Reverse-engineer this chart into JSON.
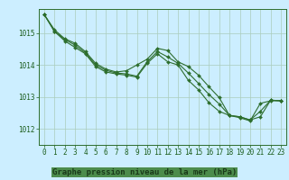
{
  "title": "Graphe pression niveau de la mer (hPa)",
  "background_color": "#cceeff",
  "grid_color": "#aaccbb",
  "line_color": "#2d6e2d",
  "marker": "D",
  "markersize": 2.0,
  "linewidth": 0.8,
  "xlim": [
    -0.5,
    23.5
  ],
  "ylim": [
    1011.5,
    1015.75
  ],
  "yticks": [
    1012,
    1013,
    1014,
    1015
  ],
  "xticks": [
    0,
    1,
    2,
    3,
    4,
    5,
    6,
    7,
    8,
    9,
    10,
    11,
    12,
    13,
    14,
    15,
    16,
    17,
    18,
    19,
    20,
    21,
    22,
    23
  ],
  "series": [
    [
      1015.58,
      1015.1,
      1014.82,
      1014.68,
      1014.42,
      1014.05,
      1013.87,
      1013.78,
      1013.82,
      1014.0,
      1014.18,
      1014.52,
      1014.45,
      1014.1,
      1013.95,
      1013.68,
      1013.32,
      1012.98,
      1012.42,
      1012.38,
      1012.28,
      1012.38,
      1012.9,
      1012.88
    ],
    [
      1015.58,
      1015.05,
      1014.75,
      1014.55,
      1014.35,
      1013.95,
      1013.78,
      1013.72,
      1013.68,
      1013.62,
      1014.05,
      1014.35,
      1014.1,
      1014.0,
      1013.52,
      1013.22,
      1012.82,
      1012.55,
      1012.42,
      1012.35,
      1012.25,
      1012.8,
      1012.88,
      1012.88
    ],
    [
      1015.58,
      1015.05,
      1014.8,
      1014.62,
      1014.38,
      1014.0,
      1013.83,
      1013.75,
      1013.72,
      1013.65,
      1014.1,
      1014.42,
      1014.25,
      1014.05,
      1013.75,
      1013.42,
      1013.08,
      1012.78,
      1012.42,
      1012.38,
      1012.28,
      1012.55,
      1012.9,
      1012.88
    ]
  ],
  "tick_fontsize": 5.5,
  "title_fontsize": 6.5,
  "title_color": "#1a5c1a",
  "tick_color": "#1a5c1a",
  "axis_color": "#2d6e2d",
  "title_bg": "#4caf50"
}
